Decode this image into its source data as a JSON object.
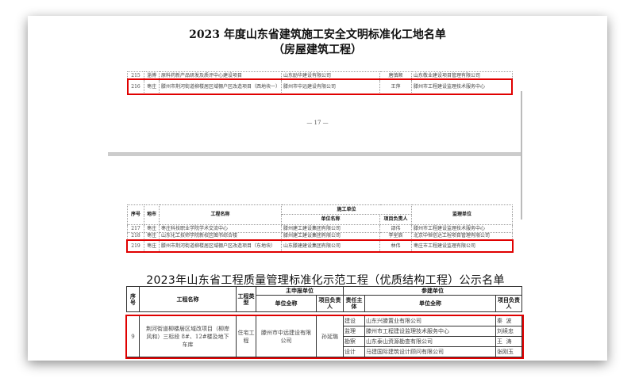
{
  "page1": {
    "title": "2023 年度山东省建筑施工安全文明标准化工地名单",
    "subtitle": "（房屋建筑工程）",
    "rows": [
      {
        "no": "215",
        "city": "淄博",
        "project": "原料药新产品研发及质评中心建设项目",
        "company": "山东励华建设有限公司",
        "manager": "唐慎顺",
        "supervisor": "山东敬业建设项目管理有限公司"
      },
      {
        "no": "216",
        "city": "枣庄",
        "project": "滕州市荆河街道柳楼居区域棚户区改造项目（西地块一）",
        "company": "滕州市中远建设有限公司",
        "manager": "王萍",
        "supervisor": "滕州市工程建设监理技术服务中心"
      }
    ],
    "page_number": "— 17 —"
  },
  "page2": {
    "headers": {
      "no": "序号",
      "city": "地市",
      "project": "工程名称",
      "builder": "施工单位",
      "company": "单位名称",
      "manager": "项目负责人",
      "supervisor": "监理单位"
    },
    "rows": [
      {
        "no": "217",
        "city": "枣庄",
        "project": "枣庄科技职业学院学术交流中心",
        "company": "滕州建工建设集团有限公司",
        "manager": "邵伟",
        "supervisor": "滕州市工程建设监理技术服务中心"
      },
      {
        "no": "218",
        "city": "枣庄",
        "project": "山东化工技师学院新校区图书综合楼",
        "company": "滕州建工建设集团有限公司",
        "manager": "李星辰",
        "supervisor": "北京中恒信达工程项目管理有限公司"
      },
      {
        "no": "219",
        "city": "枣庄",
        "project": "滕州市荆河街道柳楼居区域棚户区改造项目（东地块）",
        "company": "山东滕建建设集团有限公司",
        "manager": "林伟",
        "supervisor": "枣庄市工程建设监理有限公司"
      }
    ]
  },
  "quality": {
    "title": "2023年山东省工程质量管理标准化示范工程（优质结构工程）公示名单",
    "headers": {
      "no": "序号",
      "project": "工程名称",
      "type": "工程类型",
      "main": "主申报单位",
      "main_company": "单位全称",
      "main_manager": "项目负责人",
      "participants": "参建单位",
      "role": "责任主体",
      "part_company": "单位全称",
      "part_manager": "项目负责人"
    },
    "row": {
      "no": "9",
      "project": "荆河街道柳楼居区域改项目（柳岸风和）三标段 8#、12#楼及地下车库",
      "type": "住宅工程",
      "company": "滕州市中远建设有限公司",
      "manager": "孙延璐",
      "participants": [
        {
          "role": "建设",
          "company": "山东兴滕置业有限公司",
          "manager": "秦  波"
        },
        {
          "role": "监理",
          "company": "滕州市工程建设监理技术服务中心",
          "manager": "刘续忠"
        },
        {
          "role": "勘察",
          "company": "山东泰山资源勘查有限公司",
          "manager": "王  涛"
        },
        {
          "role": "设计",
          "company": "马建国际建筑设计顾问有限公司",
          "manager": "张刚玉"
        }
      ]
    }
  },
  "colors": {
    "highlight": "#e00000"
  }
}
